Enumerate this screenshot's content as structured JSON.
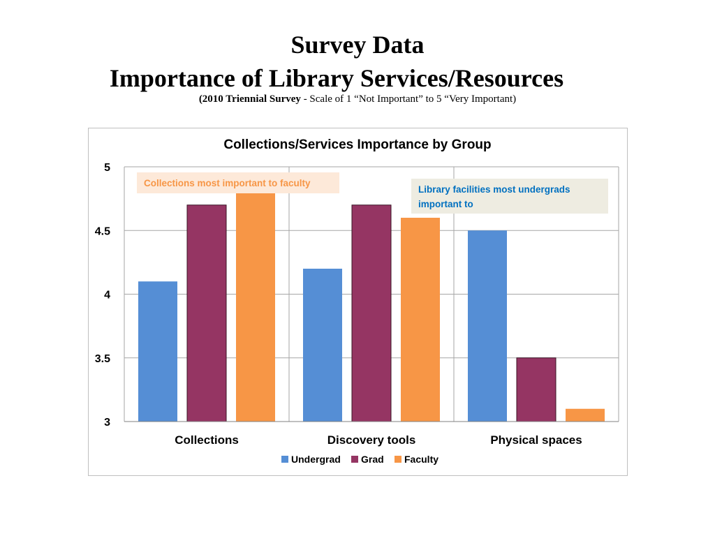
{
  "slide": {
    "title_line1": "Survey Data",
    "title_line2": "Importance of Library Services/Resources",
    "subtitle_bold": "(2010 Triennial Survey",
    "subtitle_rest": " - Scale of 1 “Not Important” to 5 “Very Important)"
  },
  "callouts": {
    "faculty": "Collections most important  to faculty",
    "undergrad": "Library facilities most undergrads important to"
  },
  "colors": {
    "Undergrad": "#558ed5",
    "Grad": "#953563",
    "Faculty": "#f79646",
    "grid": "#a6a6a6",
    "text": "#000000"
  },
  "chart_data": {
    "type": "bar",
    "title": "Collections/Services Importance by Group",
    "categories": [
      "Collections",
      "Discovery tools",
      "Physical spaces"
    ],
    "series": [
      {
        "name": "Undergrad",
        "values": [
          4.1,
          4.2,
          4.5
        ]
      },
      {
        "name": "Grad",
        "values": [
          4.7,
          4.7,
          3.5
        ]
      },
      {
        "name": "Faculty",
        "values": [
          4.8,
          4.6,
          3.1
        ]
      }
    ],
    "ylim": [
      3,
      5
    ],
    "yticks": [
      "3",
      "3.5",
      "4",
      "4.5",
      "5"
    ],
    "grid": true,
    "legend": "bottom"
  }
}
